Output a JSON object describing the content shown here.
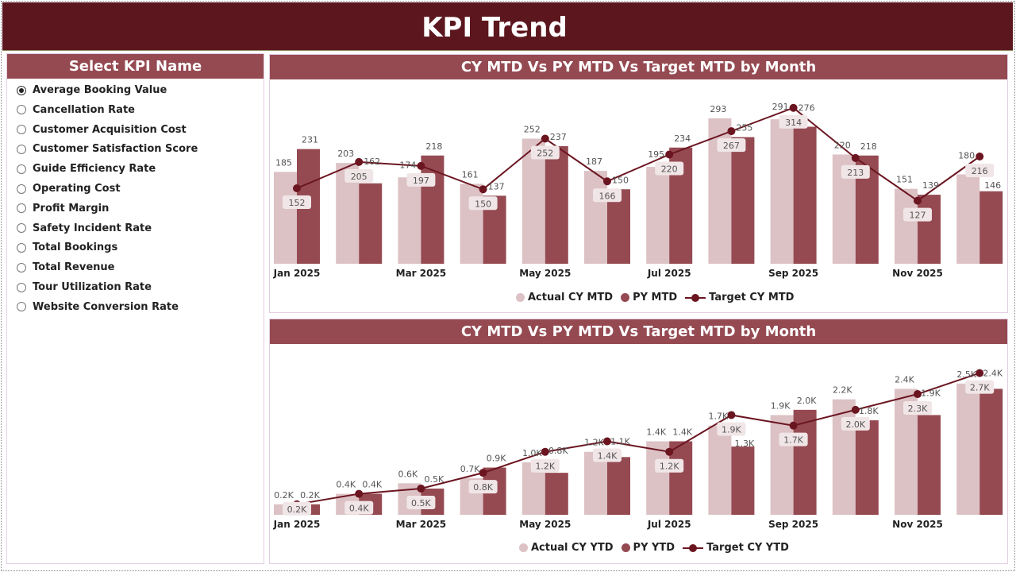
{
  "header": {
    "title": "KPI Trend"
  },
  "kpi_selector": {
    "title": "Select KPI Name",
    "selected_index": 0,
    "items": [
      "Average Booking Value",
      "Cancellation Rate",
      "Customer Acquisition Cost",
      "Customer Satisfaction Score",
      "Guide Efficiency Rate",
      "Operating Cost",
      "Profit Margin",
      "Safety Incident Rate",
      "Total Bookings",
      "Total Revenue",
      "Tour Utilization Rate",
      "Website Conversion Rate"
    ]
  },
  "colors": {
    "header": "#5c171e",
    "panel_header": "#954a52",
    "actual": "#dcc2c5",
    "py": "#954a52",
    "target": "#6b1520"
  },
  "chart_data": [
    {
      "type": "bar",
      "title": "CY MTD Vs PY MTD Vs Target MTD by Month",
      "categories": [
        "Jan 2025",
        "Feb 2025",
        "Mar 2025",
        "Apr 2025",
        "May 2025",
        "Jun 2025",
        "Jul 2025",
        "Aug 2025",
        "Sep 2025",
        "Oct 2025",
        "Nov 2025",
        "Dec 2025"
      ],
      "tick_labels": [
        "Jan 2025",
        "",
        "Mar 2025",
        "",
        "May 2025",
        "",
        "Jul 2025",
        "",
        "Sep 2025",
        "",
        "Nov 2025",
        ""
      ],
      "series": [
        {
          "name": "Actual CY MTD",
          "kind": "bar",
          "values": [
            185,
            203,
            174,
            161,
            252,
            187,
            195,
            293,
            291,
            220,
            151,
            180
          ]
        },
        {
          "name": "PY MTD",
          "kind": "bar",
          "values": [
            231,
            162,
            218,
            137,
            237,
            150,
            234,
            255,
            276,
            218,
            139,
            146
          ]
        },
        {
          "name": "Target CY MTD",
          "kind": "line",
          "values": [
            152,
            205,
            197,
            150,
            252,
            166,
            220,
            267,
            314,
            213,
            127,
            216
          ]
        }
      ],
      "ylim": [
        0,
        320
      ],
      "grid": false,
      "legend": "bottom"
    },
    {
      "type": "bar",
      "title": "CY MTD Vs PY MTD Vs Target MTD by Month",
      "categories": [
        "Jan 2025",
        "Feb 2025",
        "Mar 2025",
        "Apr 2025",
        "May 2025",
        "Jun 2025",
        "Jul 2025",
        "Aug 2025",
        "Sep 2025",
        "Oct 2025",
        "Nov 2025",
        "Dec 2025"
      ],
      "tick_labels": [
        "Jan 2025",
        "",
        "Mar 2025",
        "",
        "May 2025",
        "",
        "Jul 2025",
        "",
        "Sep 2025",
        "",
        "Nov 2025",
        ""
      ],
      "unit_suffix": "K",
      "series": [
        {
          "name": "Actual CY YTD",
          "kind": "bar",
          "values": [
            0.2,
            0.4,
            0.6,
            0.7,
            1.0,
            1.2,
            1.4,
            1.7,
            1.9,
            2.2,
            2.4,
            2.5
          ]
        },
        {
          "name": "PY YTD",
          "kind": "bar",
          "values": [
            0.2,
            0.4,
            0.5,
            0.9,
            0.8,
            1.1,
            1.4,
            1.3,
            2.0,
            1.8,
            1.9,
            2.4
          ]
        },
        {
          "name": "Target CY YTD",
          "kind": "line",
          "values": [
            0.2,
            0.4,
            0.5,
            0.8,
            1.2,
            1.4,
            1.2,
            1.9,
            1.7,
            2.0,
            2.3,
            2.7
          ]
        }
      ],
      "ylim": [
        0,
        2.8
      ],
      "grid": false,
      "legend": "bottom"
    }
  ]
}
